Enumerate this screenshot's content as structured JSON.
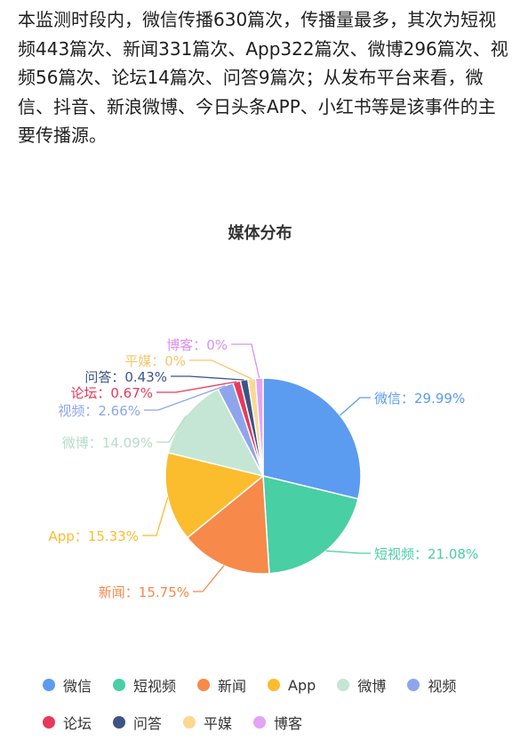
{
  "intro_text": "本监测时段内，微信传播630篇次，传播量最多，其次为短视频443篇次、新闻331篇次、App322篇次、微博296篇次、视频56篇次、论坛14篇次、问答9篇次；从发布平台来看，微信、抖音、新浪微博、今日头条APP、小红书等是该事件的主要传播源。",
  "chart_data": {
    "type": "pie",
    "title": "媒体分布",
    "legend_position": "bottom",
    "slices": [
      {
        "name": "微信",
        "value": 29.99,
        "label": "微信：29.99%",
        "color": "#5b9bf0"
      },
      {
        "name": "短视频",
        "value": 21.08,
        "label": "短视频：21.08%",
        "color": "#48cfa4"
      },
      {
        "name": "新闻",
        "value": 15.75,
        "label": "新闻：15.75%",
        "color": "#f7894a"
      },
      {
        "name": "App",
        "value": 15.33,
        "label": "App：15.33%",
        "color": "#fbbc2e"
      },
      {
        "name": "微博",
        "value": 14.09,
        "label": "微博：14.09%",
        "color": "#c5e6d4"
      },
      {
        "name": "视频",
        "value": 2.66,
        "label": "视频：2.66%",
        "color": "#8ea5ee"
      },
      {
        "name": "论坛",
        "value": 0.67,
        "label": "论坛：0.67%",
        "color": "#e8395a"
      },
      {
        "name": "问答",
        "value": 0.43,
        "label": "问答：0.43%",
        "color": "#3c5486"
      },
      {
        "name": "平媒",
        "value": 0,
        "label": "平媒：0%",
        "color": "#fcd890"
      },
      {
        "name": "博客",
        "value": 0,
        "label": "博客：0%",
        "color": "#e4a3f5"
      }
    ]
  }
}
